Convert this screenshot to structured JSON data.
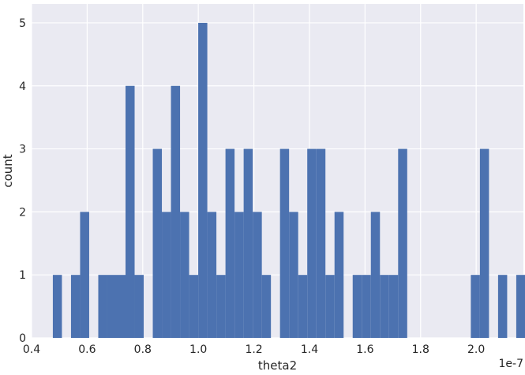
{
  "chart_data": {
    "type": "bar",
    "subtype": "histogram",
    "title": "",
    "xlabel": "theta2",
    "ylabel": "count",
    "x_offset_text": "1e-7",
    "xlim": [
      0.4,
      2.17
    ],
    "ylim": [
      0,
      5.3
    ],
    "x_ticks": [
      0.4,
      0.6,
      0.8,
      1.0,
      1.2,
      1.4,
      1.6,
      1.8,
      2.0
    ],
    "x_tick_labels": [
      "0.4",
      "0.6",
      "0.8",
      "1.0",
      "1.2",
      "1.4",
      "1.6",
      "1.8",
      "2.0"
    ],
    "y_ticks": [
      0,
      1,
      2,
      3,
      4,
      5
    ],
    "y_tick_labels": [
      "0",
      "1",
      "2",
      "3",
      "4",
      "5"
    ],
    "grid": true,
    "bin_width": 0.0327,
    "x_start": 0.4765,
    "counts": [
      1,
      0,
      1,
      2,
      0,
      1,
      1,
      1,
      4,
      1,
      0,
      3,
      2,
      4,
      2,
      1,
      5,
      2,
      1,
      3,
      2,
      3,
      2,
      1,
      0,
      3,
      2,
      1,
      3,
      3,
      1,
      2,
      0,
      1,
      1,
      2,
      1,
      1,
      3,
      0,
      0,
      0,
      0,
      0,
      0,
      0,
      1,
      3,
      0,
      1,
      0,
      1
    ],
    "bar_color": "#4c72b0",
    "background_color": "#eaeaf2",
    "grid_color": "#ffffff"
  }
}
